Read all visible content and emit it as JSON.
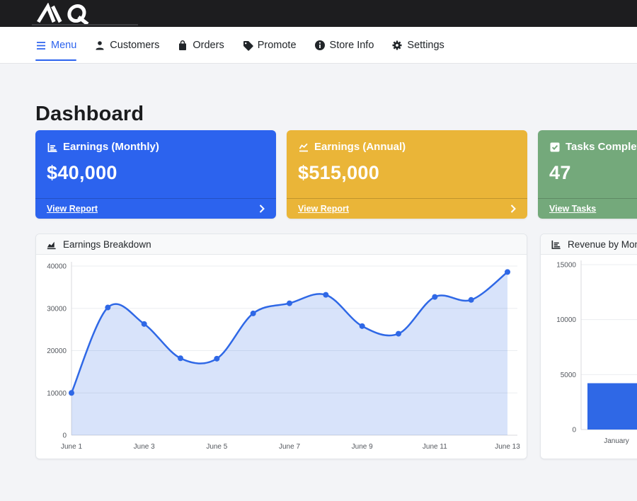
{
  "brand": {
    "logo_text": "MQ"
  },
  "colors": {
    "primary_blue": "#2c63ee",
    "warning_yellow": "#eab538",
    "success_green": "#74a97b",
    "chart_blue": "#2f68e6"
  },
  "navbar": {
    "items": [
      {
        "label": "Menu",
        "icon": "menu-icon",
        "active": true
      },
      {
        "label": "Customers",
        "icon": "person-icon",
        "active": false
      },
      {
        "label": "Orders",
        "icon": "bag-icon",
        "active": false
      },
      {
        "label": "Promote",
        "icon": "tag-icon",
        "active": false
      },
      {
        "label": "Store Info",
        "icon": "info-icon",
        "active": false
      },
      {
        "label": "Settings",
        "icon": "gear-icon",
        "active": false
      }
    ]
  },
  "page": {
    "title": "Dashboard"
  },
  "stat_cards": [
    {
      "title": "Earnings (Monthly)",
      "value": "$40,000",
      "link_label": "View Report",
      "color": "#2c63ee",
      "icon": "bar-chart-icon"
    },
    {
      "title": "Earnings (Annual)",
      "value": "$515,000",
      "link_label": "View Report",
      "color": "#eab538",
      "icon": "line-chart-icon"
    },
    {
      "title": "Tasks Completed",
      "value": "47",
      "link_label": "View Tasks",
      "color": "#74a97b",
      "icon": "check-square-icon"
    }
  ],
  "chart_data": [
    {
      "type": "area",
      "title": "Earnings Breakdown",
      "x": [
        "June 1",
        "June 2",
        "June 3",
        "June 4",
        "June 5",
        "June 6",
        "June 7",
        "June 8",
        "June 9",
        "June 10",
        "June 11",
        "June 12",
        "June 13"
      ],
      "values": [
        10000,
        30200,
        26300,
        18200,
        18100,
        28800,
        31200,
        33200,
        25800,
        24000,
        32700,
        32000,
        38600
      ],
      "ylim": [
        0,
        40000
      ],
      "yticks": [
        0,
        10000,
        20000,
        30000,
        40000
      ],
      "x_label_every": 2,
      "grid": true,
      "legend": false,
      "line_color": "#2f68e6",
      "fill_color": "rgba(47,104,230,0.19)"
    },
    {
      "type": "bar",
      "title": "Revenue by Month",
      "categories": [
        "January"
      ],
      "values": [
        4215
      ],
      "ylim": [
        0,
        15000
      ],
      "yticks": [
        0,
        5000,
        10000,
        15000
      ],
      "grid": true,
      "legend": false,
      "bar_color": "#2f68e6"
    }
  ]
}
